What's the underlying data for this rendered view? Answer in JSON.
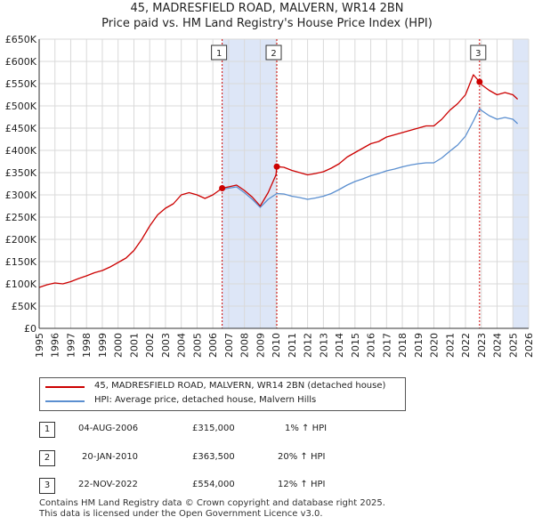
{
  "header": {
    "title_line1": "45, MADRESFIELD ROAD, MALVERN, WR14 2BN",
    "title_line2": "Price paid vs. HM Land Registry's House Price Index (HPI)"
  },
  "colors": {
    "property_line": "#cc0000",
    "hpi_line": "#5b8fd0",
    "shade": "#dde6f7",
    "sale_vline": "#cc0000",
    "grid": "#d9d9d9"
  },
  "legend": {
    "property_label": "45, MADRESFIELD ROAD, MALVERN, WR14 2BN (detached house)",
    "hpi_label": "HPI: Average price, detached house, Malvern Hills"
  },
  "sales": [
    {
      "id": "1",
      "date": "04-AUG-2006",
      "price": "£315,000",
      "hpi": "1% ↑ HPI"
    },
    {
      "id": "2",
      "date": "20-JAN-2010",
      "price": "£363,500",
      "hpi": "20% ↑ HPI"
    },
    {
      "id": "3",
      "date": "22-NOV-2022",
      "price": "£554,000",
      "hpi": "12% ↑ HPI"
    }
  ],
  "footer": {
    "line1": "Contains HM Land Registry data © Crown copyright and database right 2025.",
    "line2": "This data is licensed under the Open Government Licence v3.0."
  },
  "chart_data": {
    "type": "line",
    "title": "45, MADRESFIELD ROAD, MALVERN, WR14 2BN",
    "subtitle": "Price paid vs. HM Land Registry's House Price Index (HPI)",
    "xlabel": "",
    "ylabel": "",
    "xlim": [
      1995,
      2026
    ],
    "ylim": [
      0,
      650000
    ],
    "x_ticks": [
      1995,
      1996,
      1997,
      1998,
      1999,
      2000,
      2001,
      2002,
      2003,
      2004,
      2005,
      2006,
      2007,
      2008,
      2009,
      2010,
      2011,
      2012,
      2013,
      2014,
      2015,
      2016,
      2017,
      2018,
      2019,
      2020,
      2021,
      2022,
      2023,
      2024,
      2025,
      2026
    ],
    "x_tick_labels": [
      "1995",
      "1996",
      "1997",
      "1998",
      "1999",
      "2000",
      "2001",
      "2002",
      "2003",
      "2004",
      "2005",
      "2006",
      "2007",
      "2008",
      "2009",
      "2010",
      "2011",
      "2012",
      "2013",
      "2014",
      "2015",
      "2016",
      "2017",
      "2018",
      "2019",
      "2020",
      "2021",
      "2022",
      "2023",
      "2024",
      "2025",
      "2026"
    ],
    "y_ticks": [
      0,
      50000,
      100000,
      150000,
      200000,
      250000,
      300000,
      350000,
      400000,
      450000,
      500000,
      550000,
      600000,
      650000
    ],
    "y_tick_labels": [
      "£0",
      "£50K",
      "£100K",
      "£150K",
      "£200K",
      "£250K",
      "£300K",
      "£350K",
      "£400K",
      "£450K",
      "£500K",
      "£550K",
      "£600K",
      "£650K"
    ],
    "grid": true,
    "legend_position": "below",
    "shaded_ranges": [
      [
        2006.59,
        2010.05
      ],
      [
        2025.0,
        2026.0
      ]
    ],
    "sale_markers": [
      {
        "label": "1",
        "x": 2006.59,
        "y": 315000
      },
      {
        "label": "2",
        "x": 2010.05,
        "y": 363500
      },
      {
        "label": "3",
        "x": 2022.89,
        "y": 554000
      }
    ],
    "series": [
      {
        "name": "45, MADRESFIELD ROAD, MALVERN, WR14 2BN (detached house)",
        "color": "#cc0000",
        "x": [
          1995.0,
          1995.5,
          1996.0,
          1996.5,
          1997.0,
          1997.5,
          1998.0,
          1998.5,
          1999.0,
          1999.5,
          2000.0,
          2000.5,
          2001.0,
          2001.5,
          2002.0,
          2002.5,
          2003.0,
          2003.5,
          2004.0,
          2004.5,
          2005.0,
          2005.5,
          2006.0,
          2006.59,
          2007.0,
          2007.5,
          2008.0,
          2008.5,
          2009.0,
          2009.5,
          2010.0,
          2010.05,
          2010.5,
          2011.0,
          2011.5,
          2012.0,
          2012.5,
          2013.0,
          2013.5,
          2014.0,
          2014.5,
          2015.0,
          2015.5,
          2016.0,
          2016.5,
          2017.0,
          2017.5,
          2018.0,
          2018.5,
          2019.0,
          2019.5,
          2020.0,
          2020.5,
          2021.0,
          2021.5,
          2022.0,
          2022.5,
          2022.89,
          2023.0,
          2023.5,
          2024.0,
          2024.5,
          2025.0,
          2025.3
        ],
        "y": [
          92000,
          98000,
          102000,
          100000,
          105000,
          112000,
          118000,
          125000,
          130000,
          138000,
          148000,
          158000,
          175000,
          200000,
          230000,
          255000,
          270000,
          280000,
          300000,
          305000,
          300000,
          292000,
          300000,
          315000,
          318000,
          322000,
          310000,
          295000,
          275000,
          305000,
          345000,
          363500,
          362000,
          355000,
          350000,
          345000,
          348000,
          352000,
          360000,
          370000,
          385000,
          395000,
          405000,
          415000,
          420000,
          430000,
          435000,
          440000,
          445000,
          450000,
          455000,
          455000,
          470000,
          490000,
          505000,
          525000,
          570000,
          554000,
          548000,
          535000,
          525000,
          530000,
          525000,
          515000
        ]
      },
      {
        "name": "HPI: Average price, detached house, Malvern Hills",
        "color": "#5b8fd0",
        "x": [
          2006.59,
          2007.0,
          2007.5,
          2008.0,
          2008.5,
          2009.0,
          2009.5,
          2010.05,
          2010.5,
          2011.0,
          2011.5,
          2012.0,
          2012.5,
          2013.0,
          2013.5,
          2014.0,
          2014.5,
          2015.0,
          2015.5,
          2016.0,
          2016.5,
          2017.0,
          2017.5,
          2018.0,
          2018.5,
          2019.0,
          2019.5,
          2020.0,
          2020.5,
          2021.0,
          2021.5,
          2022.0,
          2022.5,
          2022.89,
          2023.0,
          2023.5,
          2024.0,
          2024.5,
          2025.0,
          2025.3
        ],
        "y": [
          312000,
          315000,
          318000,
          305000,
          290000,
          272000,
          290000,
          303000,
          302000,
          297000,
          294000,
          290000,
          293000,
          297000,
          303000,
          312000,
          322000,
          330000,
          336000,
          343000,
          348000,
          354000,
          358000,
          363000,
          367000,
          370000,
          372000,
          372000,
          383000,
          398000,
          412000,
          432000,
          466000,
          494000,
          490000,
          478000,
          470000,
          474000,
          470000,
          460000
        ]
      }
    ]
  }
}
